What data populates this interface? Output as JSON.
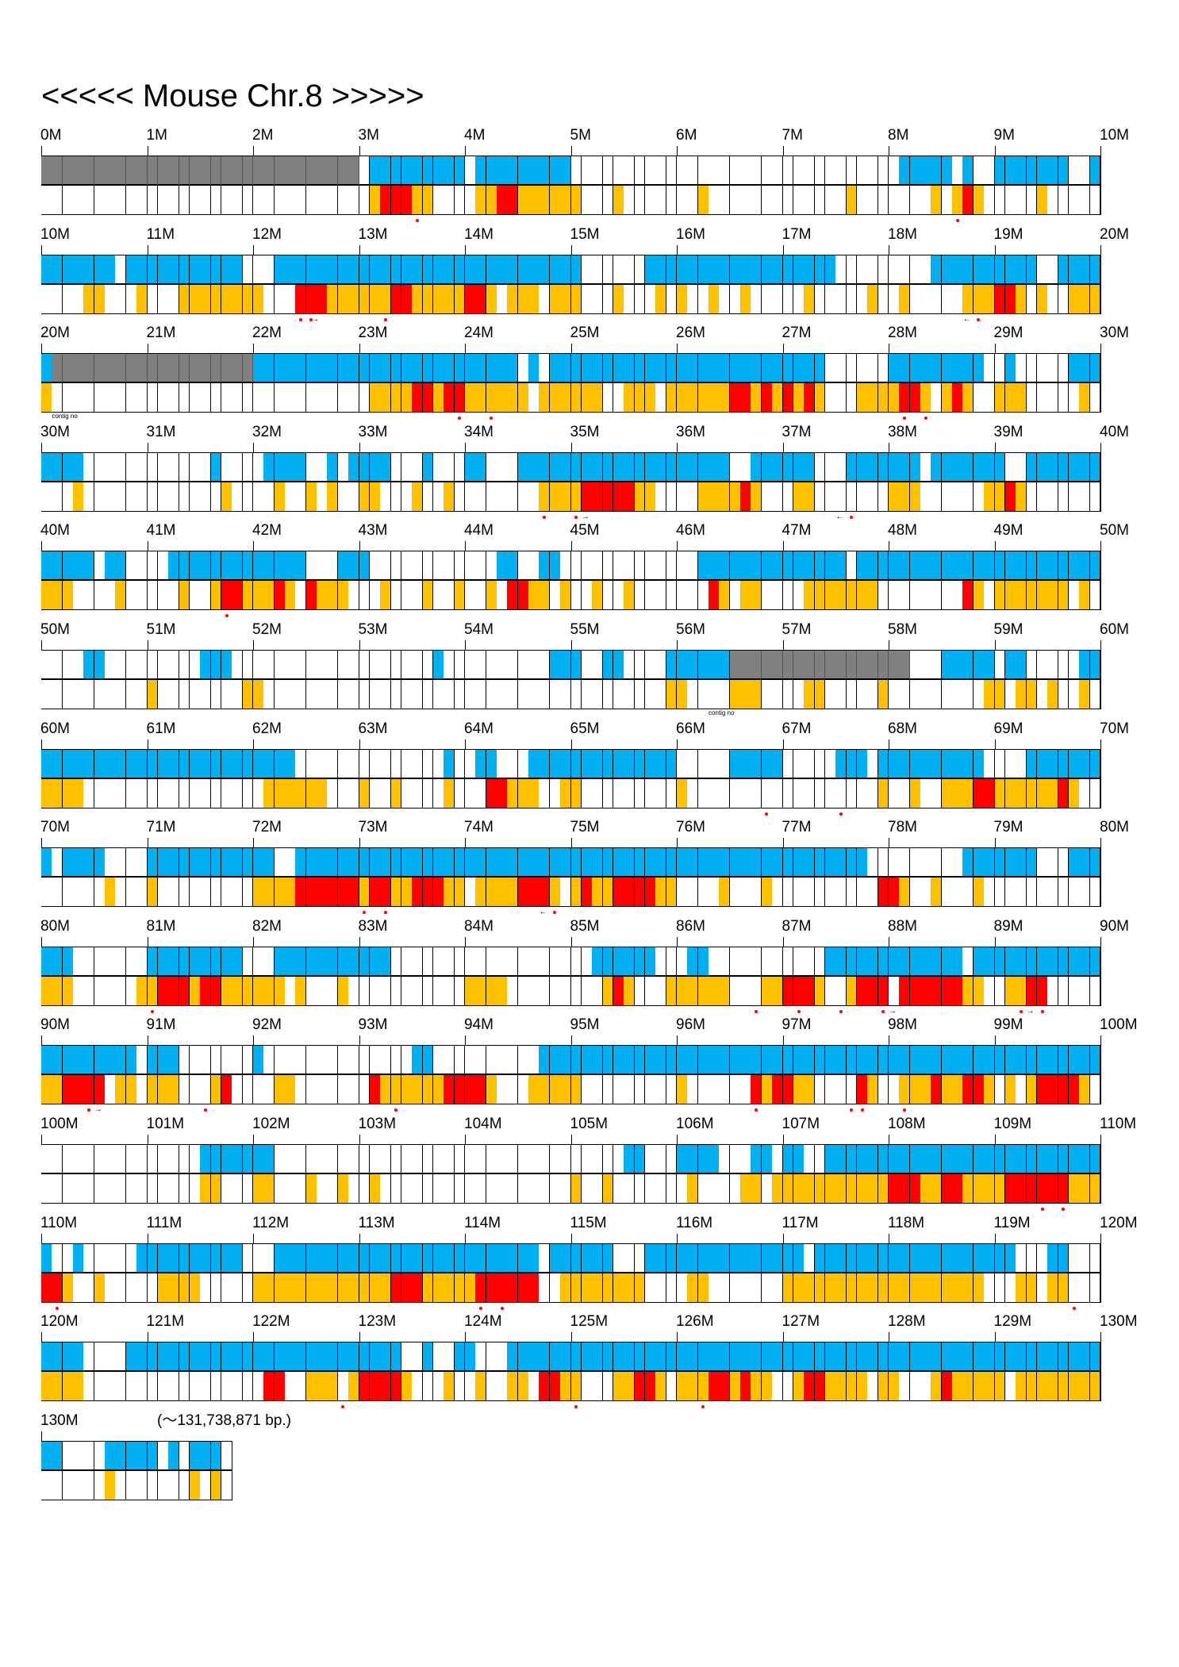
{
  "title": "<<<<< Mouse Chr.8 >>>>>",
  "end_note": "(〜131,738,871 bp.)",
  "contig_label": "contig no",
  "legend_colors": {
    "blue": "#00b0f0",
    "orange": "#ffc000",
    "red": "#ff0000",
    "gray": "#808080",
    "empty": "#ffffff"
  },
  "chart_data": {
    "type": "heatmap",
    "cells_per_megabase": 10,
    "rows": [
      {
        "ticks": [
          "0M",
          "1M",
          "2M",
          "3M",
          "4M",
          "5M",
          "6M",
          "7M",
          "8M",
          "9M",
          "10M"
        ],
        "top": "GGGGGGGGGGGGGGGGGGGGGGGGGGGGGG.BBBBBBBBB.BBBBBBBBB...............................BBBBB.B..BBBBBBB..B",
        "bottom": "...............................ORRROO....OORROOOOOO...O.......O.............O.......O.ORO.....O.......OO",
        "dots": [
          35,
          86
        ]
      },
      {
        "ticks": [
          "10M",
          "11M",
          "12M",
          "13M",
          "14M",
          "15M",
          "16M",
          "17M",
          "18M",
          "19M",
          "20M"
        ],
        "top": "BBBBBBB.BBBBBBBBBBB...BBBBBBBBBBBBBBBBBBBBBBBBBBBBB......BBBBBBBBBBBBBBBBBB.........BBBBBBBBBB..BBBB",
        "bottom": "....OO...O...OOOOOOOO...RRROOOOOORROOOOORRO.OOO.OOO...O...O.O..O..O.....O.....O..O.....OOORRO.O..OOOOO",
        "dots": [
          24,
          25,
          32,
          88
        ],
        "arrows": [
          [
            25.5,
            "→"
          ],
          [
            87,
            "←"
          ]
        ]
      },
      {
        "ticks": [
          "20M",
          "21M",
          "22M",
          "23M",
          "24M",
          "25M",
          "26M",
          "27M",
          "28M",
          "29M",
          "30M"
        ],
        "top": "BGGGGGGGGGGGGGGGGGGGBBBBBBBBBBBBBBBBBBBBBBBBB.B.BBBBBBBBBBBBBBBBBBBBBBBBBB......BBBBBBBBB..B.....BBB",
        "bottom": "O..............................OOOORRORROOOOOO.OOOOOO..OOO.OOOOOORRORORORO...OOOORRO.ORO..OOO.....O...O",
        "dots": [
          39,
          42,
          81,
          83
        ],
        "contig": 1
      },
      {
        "ticks": [
          "30M",
          "31M",
          "32M",
          "33M",
          "34M",
          "35M",
          "36M",
          "37M",
          "38M",
          "39M",
          "40M"
        ],
        "top": "BBBB............B....BBBB..B.BBBB...B...BB...BBBBBBBBBBBBBBBBBBBB..BBBBBB...BBBBBBB.BBBBBBB..BBBBBBBBBB",
        "bottom": "...O.............O....O..O.O..OO...O..O........OOOORRRRROO....OOOORO...OO.......OOO......OORO.........OO..O..O....O.O..",
        "dots": [
          47,
          50,
          76
        ],
        "arrows": [
          [
            51,
            "→"
          ],
          [
            75,
            "←"
          ]
        ]
      },
      {
        "ticks": [
          "40M",
          "41M",
          "42M",
          "43M",
          "44M",
          "45M",
          "46M",
          "47M",
          "48M",
          "49M",
          "50M"
        ],
        "top": "BBBBB.BB....BBBBBBBBBBBBB...BBB............BB..BB.............BBBBBBBBBBBBBB.BBBBBBBBBBBBBBBBBBBBBBBB.B",
        "bottom": "OOO....O.....O..ORROOORO.ROOO...O...O..O..O.RROO.O..O..O.......RO.OO....OOOOOOO........RO.OOOOOOO.O.O..OO",
        "dots": [
          17
        ]
      },
      {
        "ticks": [
          "50M",
          "51M",
          "52M",
          "53M",
          "54M",
          "55M",
          "56M",
          "57M",
          "58M",
          "59M",
          "60M"
        ],
        "top": "....BB.........BBB...................B..........BBB..BB....BBBBBBGGGGGGGGGGGGGGGGG...BBBBB.BB.....BBBB",
        "bottom": "..........O........OO......................................OO....OOO....OO.....O.........OO.OO.O..O...OR",
        "contig": 63
      },
      {
        "ticks": [
          "60M",
          "61M",
          "62M",
          "63M",
          "64M",
          "65M",
          "66M",
          "67M",
          "68M",
          "69M",
          "70M"
        ],
        "top": "BBBBBBBBBBBBBBBBBBBBBBBB..............B..BB...BBBBBBBBBBBBBB.....BBBBB.....BBB.BBBBBBBBBB....BBBBBBBBBB.BBB",
        "bottom": "OOOO.................OOOOOO...O..O....O...RROOO..OO.........O..................O..O..OOORROOOOOORO........OOO..O..O",
        "dots": [
          68,
          75
        ]
      },
      {
        "ticks": [
          "70M",
          "71M",
          "72M",
          "73M",
          "74M",
          "75M",
          "76M",
          "77M",
          "78M",
          "79M",
          "80M"
        ],
        "top": "B.BBBB....BBBBBBBBBBBB..BBBBBBBBBBBBBBBBBBBBBBBBBBBBBBBBBBBBBBBBBBBBBBBBBBBBBB.........BBBBBBB...BBBBBBB.",
        "bottom": "......O...O.........OOOORRRRRRORROORRROO.OOOORRRO.OROORRRROO....O...O..........RRO..O...O............O.",
        "dots": [
          30,
          32,
          48
        ],
        "arrows": [
          [
            47,
            "←"
          ]
        ]
      },
      {
        "ticks": [
          "80M",
          "81M",
          "82M",
          "83M",
          "84M",
          "85M",
          "86M",
          "87M",
          "88M",
          "89M",
          "90M"
        ],
        "top": "BBB.......BBBBBBBBB...BBBBBBBBBBB...................BBBBBB...BB...........BBBBBBBBBBBBB.BBBBBBBBBBBB..BBBBBBB",
        "bottom": "OOO......OORRRORROOOOOO.O...O...........OOOO.........ORO...OOOOOO...OORRRO..ORRR.RRRRRROO..OORR..............OOO",
        "dots": [
          10,
          67,
          71,
          75,
          79,
          92,
          94
        ],
        "arrows": [
          [
            80,
            "→"
          ],
          [
            93,
            "→"
          ]
        ]
      },
      {
        "ticks": [
          "90M",
          "91M",
          "92M",
          "93M",
          "94M",
          "95M",
          "96M",
          "97M",
          "98M",
          "99M",
          "100M"
        ],
        "top": "BBBBBBBBB.BBB.......B..............BB..........BBBBBBBBBBBBBBBBBBBBBBBBBBBBBBBBBBBBBBBBBBBBBBBBBBBBBBBBB.......B",
        "bottom": "OORRRR.OO.OOO...OR....OO.......ROOOOOORRRRO...OOOOO.........O......RORROO....RO..OOOROORRO.O.ORRRRO......O..O.O",
        "dots": [
          4,
          15,
          33,
          67,
          76,
          77,
          81
        ],
        "arrows": [
          [
            5,
            "→"
          ]
        ]
      },
      {
        "ticks": [
          "100M",
          "101M",
          "102M",
          "103M",
          "104M",
          "105M",
          "106M",
          "107M",
          "108M",
          "109M",
          "110M"
        ],
        "top": "...............BBBBBBB.................................BB...BBBB...BB.BB..BBBBBBBBBBBBBBBBBBBBBBBBBBBBBBBBBBBBBB",
        "bottom": "...............OO...OO...O..O..O..................O..O.......O....OO.OOOOOOOOOOORRROORROOOORRRRRROOOOORRRRRR",
        "dots": [
          94,
          96
        ]
      },
      {
        "ticks": [
          "110M",
          "111M",
          "112M",
          "113M",
          "114M",
          "115M",
          "116M",
          "117M",
          "118M",
          "119M",
          "120M"
        ],
        "top": "B..B.....BBBBBBBBBB...BBBBBBBBBBBBBBBBBBBBBBBBB.BBBBBB...BBBBBBBBBBBBBBB.BBBBBBBBBBBBBBBBBBB...BB.......BBBBBBBBB",
        "bottom": "RRO..O.....OOOO.....OOOOOOOOOOOOORRROOOOORRRRRR..OOOOOOOO....OO.......OOOOOOOOOOOOOOOOOOO...OO.OO.......RO..OOROO",
        "dots": [
          1,
          41,
          43,
          97
        ]
      },
      {
        "ticks": [
          "120M",
          "121M",
          "122M",
          "123M",
          "124M",
          "125M",
          "126M",
          "127M",
          "128M",
          "129M",
          "130M"
        ],
        "top": "BBBB....BBBBBBBBBBBBBBBBBBBBBBBBBB..B..BB...BBBBBBBBBBBBBBBBBBBBBBBBBBBBBBBBBBBBBBBBBBBBBBBBBBBBBBBBBBBBBBBBBBB",
        "bottom": "OOOO.................RR..OOO.ORRRRO...O..O..OO.RROO...OORRO.OOORROROO..ORROOOO.OO...OROOOOO.OOOOOOOOOO..ORROROOO",
        "dots": [
          28,
          50,
          62
        ]
      },
      {
        "ticks": [
          "130M",
          "",
          "",
          "",
          "",
          "",
          "",
          "",
          "",
          "",
          ""
        ],
        "top": "BB....BBBBB.B.BBB",
        "bottom": "......O.......O.O.O",
        "cells": 18
      }
    ]
  }
}
